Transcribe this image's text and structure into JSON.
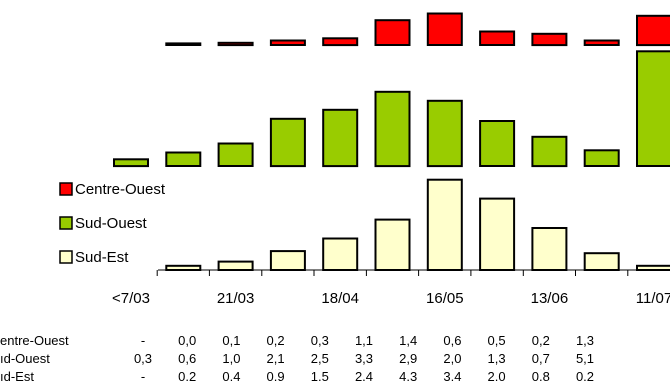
{
  "chart_data": {
    "type": "bar",
    "title": "",
    "xlabel": "",
    "ylabel": "",
    "layout": "three stacked panels (one per series) sharing a category axis; data table below",
    "grid": false,
    "legend": "left, beside the lower panels",
    "categories": [
      "<7/03",
      "",
      "21/03",
      "",
      "18/04",
      "",
      "16/05",
      "",
      "13/06",
      "",
      "11/07"
    ],
    "series": [
      {
        "name": "Centre-Ouest",
        "color": "#ff0000",
        "values": [
          null,
          0.0,
          0.1,
          0.2,
          0.3,
          1.1,
          1.4,
          0.6,
          0.5,
          0.2,
          1.3
        ],
        "labels": [
          "-",
          "0,0",
          "0,1",
          "0,2",
          "0,3",
          "1,1",
          "1,4",
          "0,6",
          "0,5",
          "0,2",
          "1,3"
        ]
      },
      {
        "name": "Sud-Ouest",
        "color": "#99cc00",
        "values": [
          0.3,
          0.6,
          1.0,
          2.1,
          2.5,
          3.3,
          2.9,
          2.0,
          1.3,
          0.7,
          5.1
        ],
        "labels": [
          "0,3",
          "0,6",
          "1,0",
          "2,1",
          "2,5",
          "3,3",
          "2,9",
          "2,0",
          "1,3",
          "0,7",
          "5,1"
        ]
      },
      {
        "name": "Sud-Est",
        "color": "#ffffcc",
        "values": [
          null,
          0.2,
          0.4,
          0.9,
          1.5,
          2.4,
          4.3,
          3.4,
          2.0,
          0.8,
          0.2
        ],
        "labels": [
          "-",
          "0.2",
          "0.4",
          "0.9",
          "1.5",
          "2.4",
          "4.3",
          "3.4",
          "2.0",
          "0.8",
          "0.2"
        ]
      }
    ],
    "table_row_labels": [
      "entre-Ouest",
      "ıd-Ouest",
      "ıd-Est"
    ]
  }
}
